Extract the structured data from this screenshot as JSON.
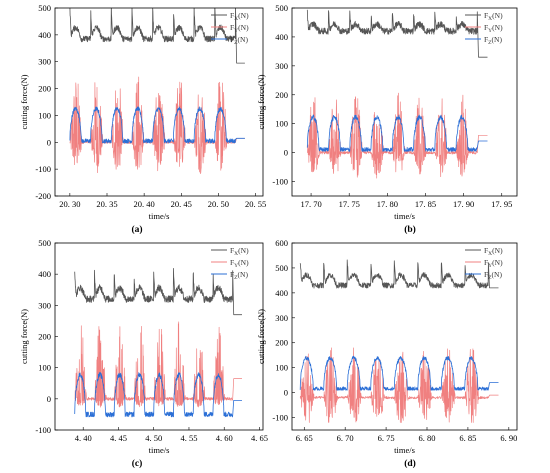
{
  "figure": {
    "panels": [
      {
        "id": "a",
        "panel_label": "(a)",
        "chart_data": {
          "type": "line",
          "xlabel": "time/s",
          "ylabel": "cutting force(N)",
          "xlim": [
            20.28,
            20.56
          ],
          "ylim": [
            -200,
            500
          ],
          "xticks": [
            20.3,
            20.35,
            20.4,
            20.45,
            20.5,
            20.55
          ],
          "yticks": [
            -200,
            -100,
            0,
            100,
            200,
            300,
            400,
            500
          ],
          "xtick_labels": [
            "20. 30",
            "20. 35",
            "20. 40",
            "20. 45",
            "20. 50",
            "20. 55"
          ],
          "ytick_labels": [
            "-200",
            "-100",
            "0",
            "100",
            "200",
            "300",
            "400",
            "500"
          ],
          "legend_position": "top-right",
          "t_start": 20.3,
          "t_end": 20.523,
          "cycles": 8,
          "series": [
            {
              "name": "Fx(N)",
              "sub": "X",
              "color": "#555555",
              "base": 385,
              "amp": 70,
              "min": 330,
              "max": 530,
              "end_value": 295
            },
            {
              "name": "Fy(N)",
              "sub": "Y",
              "color": "#f08080",
              "base": 0,
              "amp": 215,
              "min": -130,
              "max": 265,
              "end_value": 15
            },
            {
              "name": "Fz(N)",
              "sub": "Z",
              "color": "#2b6fd6",
              "base": 5,
              "amp": 140,
              "min": -5,
              "max": 165,
              "end_value": 15
            }
          ]
        }
      },
      {
        "id": "b",
        "panel_label": "(b)",
        "chart_data": {
          "type": "line",
          "xlabel": "time/s",
          "ylabel": "cutting force(N)",
          "xlim": [
            17.675,
            17.97
          ],
          "ylim": [
            -150,
            500
          ],
          "xticks": [
            17.7,
            17.75,
            17.8,
            17.85,
            17.9,
            17.95
          ],
          "yticks": [
            -100,
            0,
            100,
            200,
            300,
            400,
            500
          ],
          "xtick_labels": [
            "17. 70",
            "17. 75",
            "17. 80",
            "17. 85",
            "17. 90",
            "17. 95"
          ],
          "ytick_labels": [
            "-100",
            "0",
            "100",
            "200",
            "300",
            "400",
            "500"
          ],
          "legend_position": "top-right",
          "t_start": 17.695,
          "t_end": 17.918,
          "cycles": 8,
          "series": [
            {
              "name": "Fx(N)",
              "sub": "X",
              "color": "#555555",
              "base": 420,
              "amp": 40,
              "min": 395,
              "max": 500,
              "end_value": 330
            },
            {
              "name": "Fy(N)",
              "sub": "Y",
              "color": "#f08080",
              "base": 0,
              "amp": 180,
              "min": -100,
              "max": 215,
              "end_value": 60
            },
            {
              "name": "Fz(N)",
              "sub": "Z",
              "color": "#2b6fd6",
              "base": 10,
              "amp": 140,
              "min": 5,
              "max": 160,
              "end_value": 40
            }
          ]
        }
      },
      {
        "id": "c",
        "panel_label": "(c)",
        "chart_data": {
          "type": "line",
          "xlabel": "time/s",
          "ylabel": "cutting force(N)",
          "xlim": [
            4.36,
            4.655
          ],
          "ylim": [
            -100,
            500
          ],
          "xticks": [
            4.4,
            4.45,
            4.5,
            4.55,
            4.6,
            4.65
          ],
          "yticks": [
            -100,
            0,
            100,
            200,
            300,
            400,
            500
          ],
          "xtick_labels": [
            "4. 40",
            "4. 45",
            "4. 50",
            "4. 55",
            "4. 60",
            "4. 65"
          ],
          "ytick_labels": [
            "-100",
            "0",
            "100",
            "200",
            "300",
            "400",
            "500"
          ],
          "legend_position": "top-right",
          "t_start": 4.388,
          "t_end": 4.612,
          "cycles": 8,
          "series": [
            {
              "name": "Fx(N)",
              "sub": "X",
              "color": "#555555",
              "base": 320,
              "amp": 60,
              "min": 300,
              "max": 430,
              "end_value": 270
            },
            {
              "name": "Fy(N)",
              "sub": "Y",
              "color": "#f08080",
              "base": 0,
              "amp": 230,
              "min": -30,
              "max": 260,
              "end_value": 65
            },
            {
              "name": "Fz(N)",
              "sub": "Z",
              "color": "#2b6fd6",
              "base": -50,
              "amp": 140,
              "min": -60,
              "max": 120,
              "end_value": -5
            }
          ]
        }
      },
      {
        "id": "d",
        "panel_label": "(d)",
        "chart_data": {
          "type": "line",
          "xlabel": "time/s",
          "ylabel": "cutting force(N)",
          "xlim": [
            6.635,
            6.91
          ],
          "ylim": [
            -150,
            600
          ],
          "xticks": [
            6.65,
            6.7,
            6.75,
            6.8,
            6.85,
            6.9
          ],
          "yticks": [
            -100,
            0,
            100,
            200,
            300,
            400,
            500,
            600
          ],
          "xtick_labels": [
            "6. 65",
            "6. 70",
            "6. 75",
            "6. 80",
            "6. 85",
            "6. 90"
          ],
          "ytick_labels": [
            "-100",
            "0",
            "100",
            "200",
            "300",
            "400",
            "500",
            "600"
          ],
          "legend_position": "top-right",
          "t_start": 6.645,
          "t_end": 6.875,
          "cycles": 8,
          "series": [
            {
              "name": "Fx(N)",
              "sub": "X",
              "color": "#555555",
              "base": 430,
              "amp": 70,
              "min": 410,
              "max": 550,
              "end_value": 420
            },
            {
              "name": "Fy(N)",
              "sub": "Y",
              "color": "#f08080",
              "base": -20,
              "amp": -80,
              "min": -120,
              "max": 230,
              "end_value": -10
            },
            {
              "name": "Fz(N)",
              "sub": "Z",
              "color": "#2b6fd6",
              "base": 15,
              "amp": 160,
              "min": 10,
              "max": 180,
              "end_value": 40
            }
          ]
        }
      }
    ]
  }
}
